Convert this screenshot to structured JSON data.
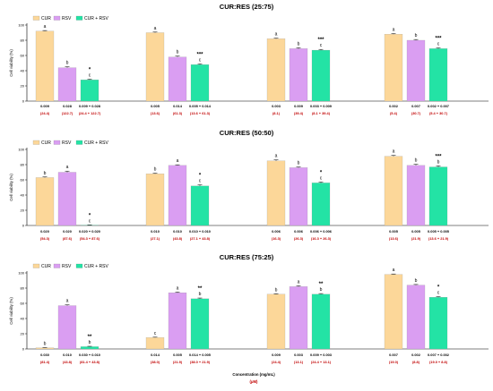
{
  "colors": {
    "CUR": "#fcd799",
    "RSV": "#da9ef2",
    "CUR + RSV": "#23e3a5",
    "micro_label": "#c00000"
  },
  "chart_data": [
    {
      "type": "bar",
      "title": "CUR:RES (25:75)",
      "ylabel": "Cell viability (%)",
      "ylim": [
        0,
        100
      ],
      "yticks": [
        0,
        20,
        40,
        60,
        80,
        100
      ],
      "legend": [
        "CUR",
        "RSV",
        "CUR + RSV"
      ],
      "legend_position": "top-left",
      "series": [
        {
          "name": "CUR",
          "values": [
            92,
            90,
            82,
            88
          ],
          "errors": [
            0.8,
            0.8,
            0.8,
            0.8
          ],
          "letters": [
            "a",
            "a",
            "a",
            "a"
          ]
        },
        {
          "name": "RSV",
          "values": [
            44,
            58,
            69,
            80
          ],
          "errors": [
            1.2,
            1.2,
            1.2,
            1.0
          ],
          "letters": [
            "b",
            "b",
            "b",
            "b"
          ]
        },
        {
          "name": "CUR + RSV",
          "values": [
            28,
            48,
            67,
            69
          ],
          "errors": [
            0.8,
            1.0,
            1.0,
            1.0
          ],
          "letters": [
            "c",
            "c",
            "c",
            "c"
          ]
        }
      ],
      "significance": [
        "*",
        "***",
        "***",
        "***"
      ],
      "concentration_labels": [
        [
          "0.009",
          "0.028",
          "0.009 + 0.028"
        ],
        [
          "0.005",
          "0.014",
          "0.005 + 0.014"
        ],
        [
          "0.003",
          "0.009",
          "0.003 + 0.009"
        ],
        [
          "0.002",
          "0.007",
          "0.002 + 0.007"
        ]
      ],
      "micromolar_labels": [
        [
          "(24.4)",
          "(122.7)",
          "(24.4 + 122.7)"
        ],
        [
          "(13.6)",
          "(61.3)",
          "(13.6 + 61.3)"
        ],
        [
          "(8.1)",
          "(39.4)",
          "(8.1 + 39.4)"
        ],
        [
          "(5.4)",
          "(30.7)",
          "(5.4 + 30.7)"
        ]
      ]
    },
    {
      "type": "bar",
      "title": "CUR:RES (50:50)",
      "ylabel": "Cell viability (%)",
      "ylim": [
        0,
        100
      ],
      "yticks": [
        0,
        20,
        40,
        60,
        80,
        100
      ],
      "legend": [
        "CUR",
        "RSV",
        "CUR + RSV"
      ],
      "legend_position": "top-left",
      "series": [
        {
          "name": "CUR",
          "values": [
            63,
            68,
            85,
            91
          ],
          "errors": [
            0.8,
            0.8,
            1.2,
            1.2
          ],
          "letters": [
            "b",
            "b",
            "a",
            "a"
          ]
        },
        {
          "name": "RSV",
          "values": [
            70,
            79,
            76,
            79
          ],
          "errors": [
            1.5,
            0.8,
            0.8,
            1.5
          ],
          "letters": [
            "a",
            "a",
            "b",
            "b"
          ]
        },
        {
          "name": "CUR + RSV",
          "values": [
            0.5,
            52,
            56,
            77
          ],
          "errors": [
            0.3,
            1.5,
            1.2,
            1.5
          ],
          "letters": [
            "c",
            "c",
            "c",
            "b"
          ]
        }
      ],
      "significance": [
        "*",
        "*",
        "*",
        "***"
      ],
      "concentration_labels": [
        [
          "0.020",
          "0.020",
          "0.020 + 0.020"
        ],
        [
          "0.010",
          "0.010",
          "0.010 + 0.010"
        ],
        [
          "0.006",
          "0.006",
          "0.006 + 0.006"
        ],
        [
          "0.005",
          "0.005",
          "0.005 + 0.005"
        ]
      ],
      "micromolar_labels": [
        [
          "(54.3)",
          "(87.6)",
          "(54.3 + 87.6)"
        ],
        [
          "(27.1)",
          "(43.8)",
          "(27.1 + 43.8)"
        ],
        [
          "(16.3)",
          "(26.3)",
          "(16.3 + 26.3)"
        ],
        [
          "(13.6)",
          "(21.9)",
          "(13.6 + 21.9)"
        ]
      ]
    },
    {
      "type": "bar",
      "title": "CUR:RES (75:25)",
      "ylabel": "Cell viability (%)",
      "ylim": [
        0,
        100
      ],
      "yticks": [
        0,
        20,
        40,
        60,
        80,
        100
      ],
      "legend": [
        "CUR",
        "RSV",
        "CUR + RSV"
      ],
      "legend_position": "top-left",
      "series": [
        {
          "name": "CUR",
          "values": [
            1.5,
            15,
            72,
            98
          ],
          "errors": [
            0.3,
            0.5,
            0.6,
            0.6
          ],
          "letters": [
            "b",
            "c",
            "b",
            "a"
          ]
        },
        {
          "name": "RSV",
          "values": [
            57,
            74,
            82,
            84
          ],
          "errors": [
            1.0,
            0.8,
            1.0,
            0.8
          ],
          "letters": [
            "a",
            "a",
            "a",
            "b"
          ]
        },
        {
          "name": "CUR + RSV",
          "values": [
            3,
            66,
            72,
            68
          ],
          "errors": [
            0.5,
            1.0,
            0.8,
            0.8
          ],
          "letters": [
            "b",
            "b",
            "b",
            "c"
          ]
        }
      ],
      "significance": [
        "**",
        "**",
        "**",
        "*"
      ],
      "concentration_labels": [
        [
          "0.030",
          "0.010",
          "0.030 + 0.010"
        ],
        [
          "0.014",
          "0.005",
          "0.014 + 0.005"
        ],
        [
          "0.009",
          "0.003",
          "0.009 + 0.003"
        ],
        [
          "0.007",
          "0.002",
          "0.007 + 0.002"
        ]
      ],
      "micromolar_labels": [
        [
          "(81.4)",
          "(43.8)",
          "(81.4 + 43.8)"
        ],
        [
          "(38.0)",
          "(21.9)",
          "(38.0 + 21.9)"
        ],
        [
          "(24.4)",
          "(13.1)",
          "(24.4 + 13.1)"
        ],
        [
          "(19.0)",
          "(8.8)",
          "(19.0 + 8.8)"
        ]
      ],
      "xlabel": "Concentration (mg/mL)",
      "xlabel_unit": "(µM)"
    }
  ]
}
